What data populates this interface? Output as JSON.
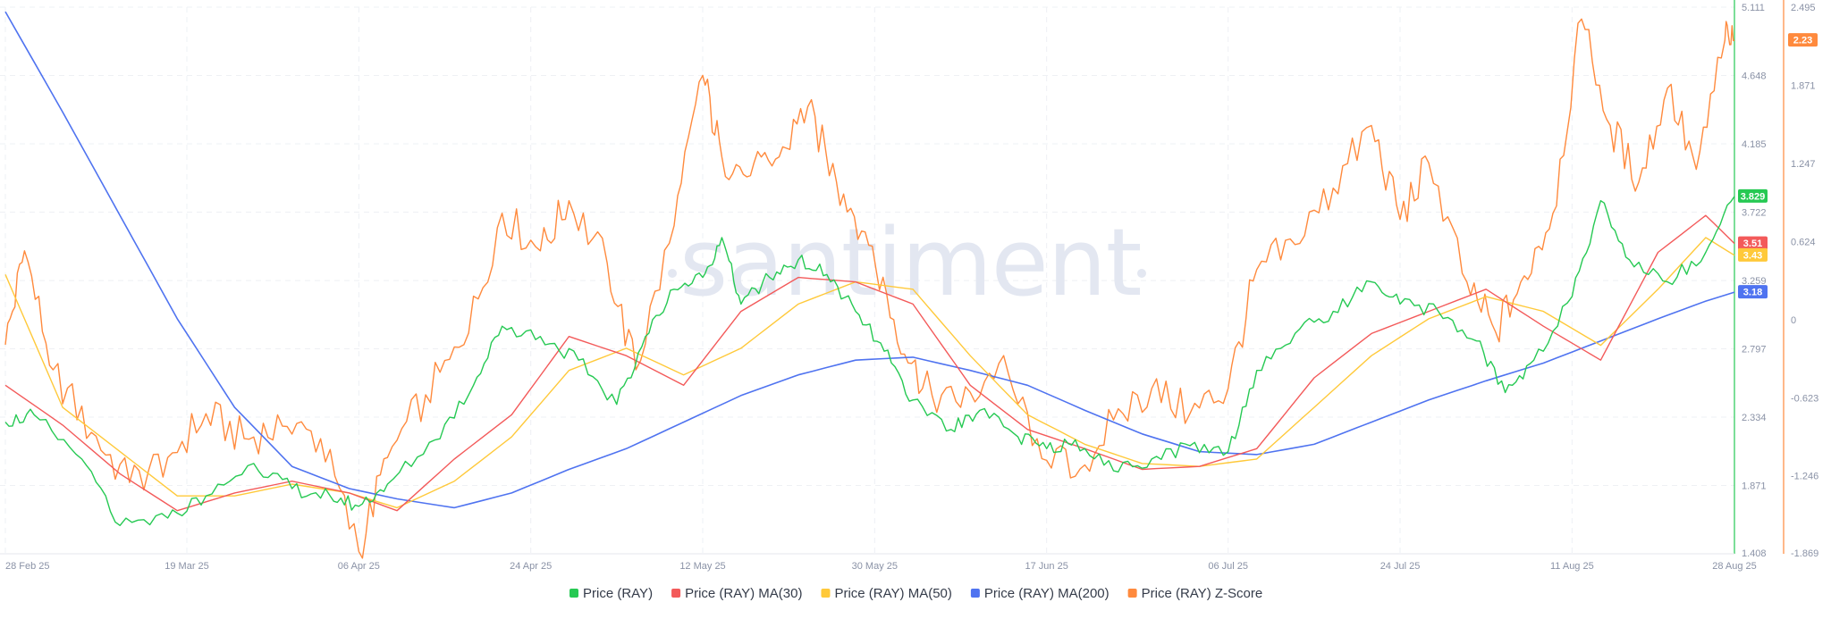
{
  "watermark": "santiment",
  "chart_data": {
    "type": "line",
    "grid": true,
    "legend_position": "bottom",
    "x_ticks": [
      "28 Feb 25",
      "19 Mar 25",
      "06 Apr 25",
      "24 Apr 25",
      "12 May 25",
      "30 May 25",
      "17 Jun 25",
      "06 Jul 25",
      "24 Jul 25",
      "11 Aug 25",
      "28 Aug 25"
    ],
    "x_range": [
      "28 Feb 25",
      "28 Aug 25"
    ],
    "y_left": {
      "ticks": [
        "5.111",
        "4.648",
        "4.185",
        "3.722",
        "3.259",
        "2.797",
        "2.334",
        "1.871",
        "1.408"
      ],
      "range": [
        1.408,
        5.111
      ],
      "color": "#26c953"
    },
    "y_right": {
      "ticks": [
        "2.495",
        "1.871",
        "1.247",
        "0.624",
        "0",
        "-0.623",
        "-1.246",
        "-1.869"
      ],
      "range": [
        -1.869,
        2.495
      ],
      "color": "#ff8a3d"
    },
    "last_value_badges": [
      {
        "label": "3.829",
        "series": "price",
        "color": "#26c953"
      },
      {
        "label": "3.51",
        "series": "ma30",
        "color": "#f35a5a"
      },
      {
        "label": "3.43",
        "series": "ma50",
        "color": "#ffc93a"
      },
      {
        "label": "3.18",
        "series": "ma200",
        "color": "#4f73f0"
      },
      {
        "label": "2.23",
        "series": "zscore",
        "color": "#ff8a3d"
      }
    ],
    "series": [
      {
        "key": "price",
        "name": "Price (RAY)",
        "color": "#26c953",
        "axis": "left",
        "dates": [
          "2025-02-28",
          "2025-03-03",
          "2025-03-08",
          "2025-03-12",
          "2025-03-17",
          "2025-03-21",
          "2025-03-26",
          "2025-03-30",
          "2025-04-03",
          "2025-04-06",
          "2025-04-09",
          "2025-04-14",
          "2025-04-18",
          "2025-04-21",
          "2025-04-25",
          "2025-04-29",
          "2025-05-03",
          "2025-05-06",
          "2025-05-09",
          "2025-05-12",
          "2025-05-14",
          "2025-05-16",
          "2025-05-19",
          "2025-05-22",
          "2025-05-25",
          "2025-05-28",
          "2025-05-31",
          "2025-06-03",
          "2025-06-07",
          "2025-06-10",
          "2025-06-14",
          "2025-06-17",
          "2025-06-20",
          "2025-06-24",
          "2025-06-28",
          "2025-07-02",
          "2025-07-06",
          "2025-07-09",
          "2025-07-13",
          "2025-07-17",
          "2025-07-21",
          "2025-07-24",
          "2025-07-28",
          "2025-08-01",
          "2025-08-04",
          "2025-08-07",
          "2025-08-11",
          "2025-08-14",
          "2025-08-17",
          "2025-08-21",
          "2025-08-25",
          "2025-08-28"
        ],
        "values": [
          2.3,
          2.35,
          2.05,
          1.6,
          1.65,
          1.8,
          2.02,
          1.85,
          1.8,
          1.73,
          1.88,
          2.18,
          2.55,
          2.95,
          2.88,
          2.72,
          2.42,
          2.88,
          3.2,
          3.28,
          3.55,
          3.1,
          3.28,
          3.4,
          3.3,
          3.05,
          2.78,
          2.45,
          2.25,
          2.38,
          2.2,
          2.12,
          2.18,
          1.97,
          2.05,
          2.14,
          2.1,
          2.65,
          2.9,
          3.05,
          3.25,
          3.1,
          3.05,
          2.85,
          2.5,
          2.72,
          3.15,
          3.8,
          3.4,
          3.25,
          3.45,
          3.829
        ]
      },
      {
        "key": "ma30",
        "name": "Price (RAY) MA(30)",
        "color": "#f35a5a",
        "axis": "left",
        "dates": [
          "2025-02-28",
          "2025-03-06",
          "2025-03-12",
          "2025-03-18",
          "2025-03-24",
          "2025-03-30",
          "2025-04-05",
          "2025-04-10",
          "2025-04-16",
          "2025-04-22",
          "2025-04-28",
          "2025-05-04",
          "2025-05-10",
          "2025-05-16",
          "2025-05-22",
          "2025-05-28",
          "2025-06-03",
          "2025-06-09",
          "2025-06-15",
          "2025-06-21",
          "2025-06-27",
          "2025-07-03",
          "2025-07-09",
          "2025-07-15",
          "2025-07-21",
          "2025-07-27",
          "2025-08-02",
          "2025-08-08",
          "2025-08-14",
          "2025-08-20",
          "2025-08-25",
          "2025-08-28"
        ],
        "values": [
          2.55,
          2.28,
          1.95,
          1.7,
          1.82,
          1.9,
          1.82,
          1.7,
          2.05,
          2.35,
          2.88,
          2.75,
          2.55,
          3.05,
          3.28,
          3.25,
          3.1,
          2.55,
          2.25,
          2.12,
          1.98,
          2.0,
          2.12,
          2.6,
          2.9,
          3.05,
          3.2,
          2.95,
          2.72,
          3.45,
          3.7,
          3.51
        ]
      },
      {
        "key": "ma50",
        "name": "Price (RAY) MA(50)",
        "color": "#ffc93a",
        "axis": "left",
        "dates": [
          "2025-02-28",
          "2025-03-06",
          "2025-03-12",
          "2025-03-18",
          "2025-03-24",
          "2025-03-30",
          "2025-04-05",
          "2025-04-10",
          "2025-04-16",
          "2025-04-22",
          "2025-04-28",
          "2025-05-04",
          "2025-05-10",
          "2025-05-16",
          "2025-05-22",
          "2025-05-28",
          "2025-06-03",
          "2025-06-09",
          "2025-06-15",
          "2025-06-21",
          "2025-06-27",
          "2025-07-03",
          "2025-07-09",
          "2025-07-15",
          "2025-07-21",
          "2025-07-27",
          "2025-08-02",
          "2025-08-08",
          "2025-08-14",
          "2025-08-20",
          "2025-08-25",
          "2025-08-28"
        ],
        "values": [
          3.3,
          2.4,
          2.1,
          1.8,
          1.8,
          1.88,
          1.82,
          1.72,
          1.9,
          2.2,
          2.65,
          2.8,
          2.62,
          2.8,
          3.1,
          3.25,
          3.2,
          2.75,
          2.35,
          2.15,
          2.02,
          2.0,
          2.05,
          2.4,
          2.75,
          3.0,
          3.15,
          3.05,
          2.82,
          3.2,
          3.55,
          3.43
        ]
      },
      {
        "key": "ma200",
        "name": "Price (RAY) MA(200)",
        "color": "#4f73f0",
        "axis": "left",
        "dates": [
          "2025-02-28",
          "2025-03-06",
          "2025-03-12",
          "2025-03-18",
          "2025-03-24",
          "2025-03-30",
          "2025-04-05",
          "2025-04-10",
          "2025-04-16",
          "2025-04-22",
          "2025-04-28",
          "2025-05-04",
          "2025-05-10",
          "2025-05-16",
          "2025-05-22",
          "2025-05-28",
          "2025-06-03",
          "2025-06-09",
          "2025-06-15",
          "2025-06-21",
          "2025-06-27",
          "2025-07-03",
          "2025-07-09",
          "2025-07-15",
          "2025-07-21",
          "2025-07-27",
          "2025-08-02",
          "2025-08-08",
          "2025-08-14",
          "2025-08-20",
          "2025-08-25",
          "2025-08-28"
        ],
        "values": [
          5.08,
          4.4,
          3.7,
          3.0,
          2.4,
          2.0,
          1.85,
          1.78,
          1.72,
          1.82,
          1.98,
          2.12,
          2.3,
          2.48,
          2.62,
          2.72,
          2.74,
          2.65,
          2.55,
          2.38,
          2.22,
          2.1,
          2.08,
          2.15,
          2.3,
          2.45,
          2.58,
          2.7,
          2.85,
          3.0,
          3.12,
          3.18
        ]
      },
      {
        "key": "zscore",
        "name": "Price (RAY) Z-Score",
        "color": "#ff8a3d",
        "axis": "right",
        "dates": [
          "2025-02-28",
          "2025-03-02",
          "2025-03-05",
          "2025-03-09",
          "2025-03-13",
          "2025-03-17",
          "2025-03-21",
          "2025-03-25",
          "2025-03-29",
          "2025-04-02",
          "2025-04-06",
          "2025-04-09",
          "2025-04-13",
          "2025-04-17",
          "2025-04-21",
          "2025-04-25",
          "2025-04-28",
          "2025-05-02",
          "2025-05-05",
          "2025-05-09",
          "2025-05-12",
          "2025-05-14",
          "2025-05-17",
          "2025-05-20",
          "2025-05-23",
          "2025-05-26",
          "2025-05-29",
          "2025-06-01",
          "2025-06-04",
          "2025-06-08",
          "2025-06-12",
          "2025-06-16",
          "2025-06-20",
          "2025-06-24",
          "2025-06-28",
          "2025-07-02",
          "2025-07-06",
          "2025-07-09",
          "2025-07-13",
          "2025-07-17",
          "2025-07-21",
          "2025-07-24",
          "2025-07-27",
          "2025-07-31",
          "2025-08-03",
          "2025-08-06",
          "2025-08-09",
          "2025-08-12",
          "2025-08-15",
          "2025-08-18",
          "2025-08-21",
          "2025-08-24",
          "2025-08-27",
          "2025-08-28"
        ],
        "values": [
          -0.2,
          0.55,
          -0.4,
          -0.9,
          -1.3,
          -1.1,
          -0.75,
          -0.95,
          -0.85,
          -0.95,
          -1.85,
          -1.1,
          -0.6,
          -0.2,
          0.85,
          0.55,
          0.95,
          0.45,
          -0.4,
          0.75,
          1.95,
          1.3,
          1.15,
          1.3,
          1.7,
          1.1,
          0.7,
          0.0,
          -0.55,
          -0.7,
          -0.35,
          -0.95,
          -1.25,
          -0.8,
          -0.55,
          -0.75,
          -0.55,
          0.4,
          0.6,
          1.05,
          1.55,
          0.8,
          1.25,
          0.3,
          -0.1,
          0.35,
          0.85,
          2.4,
          1.55,
          1.1,
          1.85,
          1.2,
          2.23,
          2.23
        ]
      }
    ]
  }
}
